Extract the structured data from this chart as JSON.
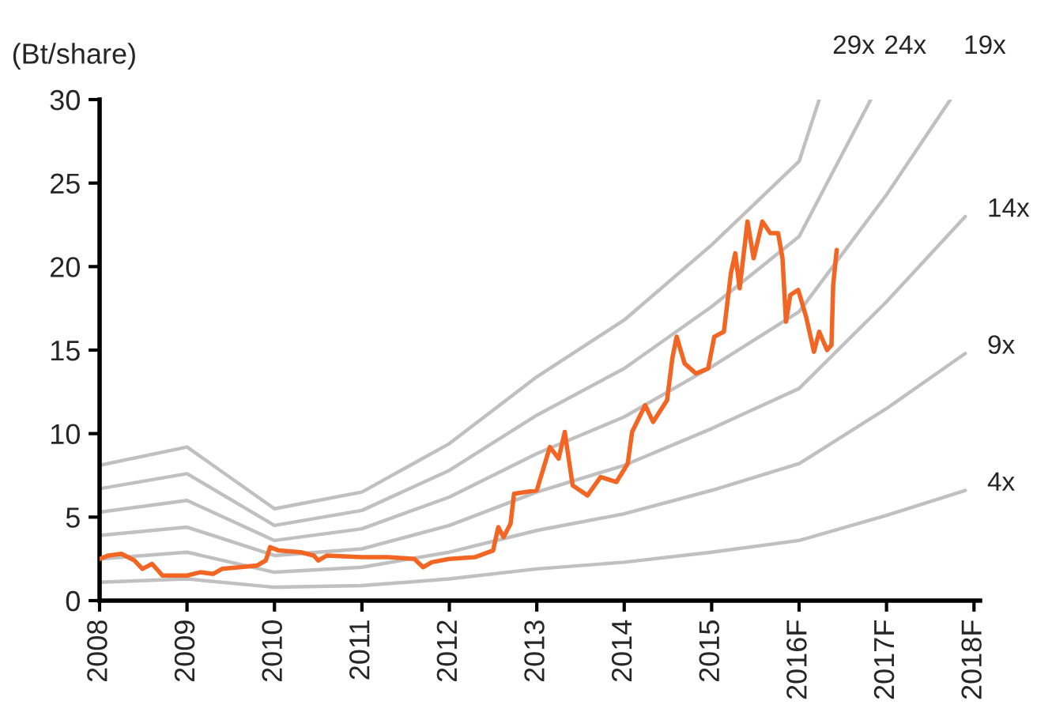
{
  "chart_data": {
    "type": "line",
    "ylabel": "(Bt/share)",
    "xlim": [
      2008,
      2018.07
    ],
    "ylim": [
      0,
      30
    ],
    "xticks": [
      2008,
      2009,
      2010,
      2011,
      2012,
      2013,
      2014,
      2015,
      {
        "value": 2016,
        "label": "2016F"
      },
      {
        "value": 2017,
        "label": "2017F"
      },
      {
        "value": 2018,
        "label": "2018F"
      }
    ],
    "yticks": [
      0,
      5,
      10,
      15,
      20,
      25,
      30
    ],
    "grid": false,
    "legend": false,
    "marker": "none",
    "line_style": "solid",
    "series": [
      {
        "name": "29x",
        "color": "#c0c0c0",
        "x": [
          2008,
          2009,
          2010,
          2011,
          2012,
          2013,
          2014,
          2015,
          2016,
          2016.23
        ],
        "values": [
          8.1,
          9.2,
          5.5,
          6.5,
          9.4,
          13.4,
          16.8,
          21.3,
          26.3,
          30
        ]
      },
      {
        "name": "24x",
        "color": "#c0c0c0",
        "x": [
          2008,
          2009,
          2010,
          2011,
          2012,
          2013,
          2014,
          2015,
          2016,
          2016.82
        ],
        "values": [
          6.7,
          7.6,
          4.5,
          5.4,
          7.8,
          11.1,
          13.9,
          17.6,
          21.8,
          30
        ]
      },
      {
        "name": "19x",
        "color": "#c0c0c0",
        "x": [
          2008,
          2009,
          2010,
          2011,
          2012,
          2013,
          2014,
          2015,
          2016,
          2017,
          2017.73
        ],
        "values": [
          5.3,
          6.0,
          3.6,
          4.3,
          6.2,
          8.8,
          11.0,
          14.0,
          17.3,
          24.3,
          30
        ]
      },
      {
        "name": "14x",
        "color": "#c0c0c0",
        "x": [
          2008,
          2009,
          2010,
          2011,
          2012,
          2013,
          2014,
          2015,
          2016,
          2017,
          2017.9
        ],
        "values": [
          3.9,
          4.4,
          2.7,
          3.1,
          4.5,
          6.5,
          8.1,
          10.3,
          12.7,
          17.9,
          23.0
        ]
      },
      {
        "name": "9x",
        "color": "#c0c0c0",
        "x": [
          2008,
          2009,
          2010,
          2011,
          2012,
          2013,
          2014,
          2015,
          2016,
          2017,
          2017.9
        ],
        "values": [
          2.5,
          2.9,
          1.7,
          2.0,
          2.9,
          4.2,
          5.2,
          6.6,
          8.2,
          11.5,
          14.8
        ]
      },
      {
        "name": "4x",
        "color": "#c0c0c0",
        "x": [
          2008,
          2009,
          2010,
          2011,
          2012,
          2013,
          2014,
          2015,
          2016,
          2017,
          2017.9
        ],
        "values": [
          1.1,
          1.3,
          0.8,
          0.9,
          1.3,
          1.9,
          2.3,
          2.9,
          3.6,
          5.1,
          6.6
        ]
      },
      {
        "color": "#f26522",
        "x": [
          2008.0,
          2008.1,
          2008.25,
          2008.4,
          2008.49,
          2008.6,
          2008.72,
          2008.85,
          2009.0,
          2009.15,
          2009.3,
          2009.4,
          2009.6,
          2009.8,
          2009.9,
          2009.95,
          2010.05,
          2010.3,
          2010.45,
          2010.5,
          2010.6,
          2011.0,
          2011.3,
          2011.6,
          2011.7,
          2011.8,
          2012.0,
          2012.29,
          2012.5,
          2012.56,
          2012.62,
          2012.7,
          2012.74,
          2013.0,
          2013.15,
          2013.25,
          2013.32,
          2013.41,
          2013.58,
          2013.73,
          2013.91,
          2014.04,
          2014.09,
          2014.24,
          2014.33,
          2014.49,
          2014.55,
          2014.6,
          2014.69,
          2014.82,
          2014.96,
          2015.03,
          2015.14,
          2015.22,
          2015.27,
          2015.32,
          2015.41,
          2015.48,
          2015.58,
          2015.67,
          2015.76,
          2015.81,
          2015.85,
          2015.9,
          2015.99,
          2016.08,
          2016.17,
          2016.23,
          2016.32,
          2016.37,
          2016.39,
          2016.43
        ],
        "values": [
          2.5,
          2.7,
          2.8,
          2.4,
          1.9,
          2.2,
          1.5,
          1.5,
          1.5,
          1.7,
          1.6,
          1.9,
          2.0,
          2.1,
          2.4,
          3.2,
          3.0,
          2.9,
          2.7,
          2.4,
          2.7,
          2.6,
          2.6,
          2.5,
          2.0,
          2.3,
          2.5,
          2.6,
          3.0,
          4.4,
          3.8,
          4.6,
          6.4,
          6.6,
          9.2,
          8.5,
          10.1,
          6.9,
          6.3,
          7.4,
          7.1,
          8.2,
          10.1,
          11.7,
          10.7,
          12.0,
          14.5,
          15.8,
          14.2,
          13.6,
          13.9,
          15.8,
          16.1,
          19.6,
          20.8,
          18.7,
          22.7,
          20.5,
          22.7,
          22.0,
          22.0,
          20.5,
          16.7,
          18.3,
          18.6,
          17.0,
          14.9,
          16.1,
          15.0,
          15.3,
          18.9,
          21.0
        ]
      }
    ]
  }
}
